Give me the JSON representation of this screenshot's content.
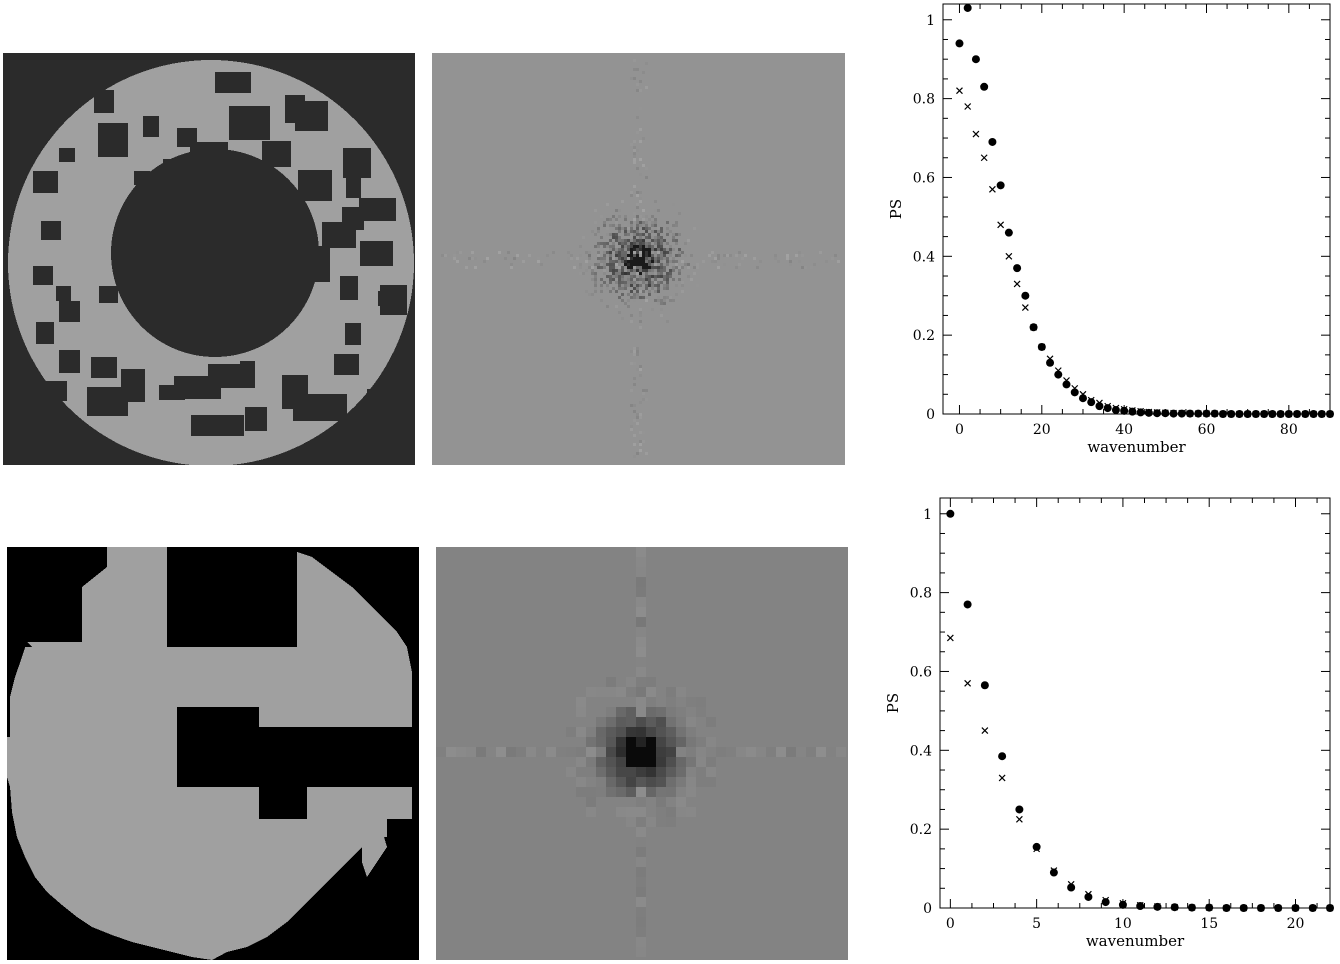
{
  "images": {
    "top_left": {
      "background": "#2b2b2b",
      "foreground": "#a0a0a0"
    },
    "top_mid": {
      "background": "#939393",
      "dark": "#1a1a1a"
    },
    "bottom_left": {
      "background": "#000000",
      "foreground": "#a0a0a0"
    },
    "bottom_mid": {
      "background": "#838383",
      "dark": "#0a0a0a"
    }
  },
  "chart_data": [
    {
      "type": "scatter",
      "xlabel": "wavenumber",
      "ylabel": "PS",
      "xlim": [
        -4,
        90
      ],
      "ylim": [
        0,
        1.04
      ],
      "xticks": [
        0,
        20,
        40,
        60,
        80
      ],
      "yticks": [
        0,
        0.2,
        0.4,
        0.6,
        0.8,
        1
      ],
      "ytick_labels": [
        "0",
        "0.2",
        "0.4",
        "0.6",
        "0.8",
        "1"
      ],
      "series": [
        {
          "marker": "circle",
          "x": [
            0,
            2,
            4,
            6,
            8,
            10,
            12,
            14,
            16,
            18,
            20,
            22,
            24,
            26,
            28,
            30,
            32,
            34,
            36,
            38,
            40,
            42,
            44,
            46,
            48,
            50,
            52,
            54,
            56,
            58,
            60,
            62,
            64,
            66,
            68,
            70,
            72,
            74,
            76,
            78,
            80,
            82,
            84,
            86,
            88,
            90
          ],
          "y": [
            0.94,
            1.03,
            0.9,
            0.83,
            0.69,
            0.58,
            0.46,
            0.37,
            0.3,
            0.22,
            0.17,
            0.13,
            0.1,
            0.075,
            0.055,
            0.04,
            0.03,
            0.02,
            0.015,
            0.01,
            0.008,
            0.006,
            0.004,
            0.003,
            0.002,
            0.002,
            0.001,
            0.001,
            0.001,
            0.001,
            0.001,
            0.001,
            0,
            0,
            0,
            0,
            0,
            0,
            0,
            0,
            0,
            0,
            0,
            0,
            0,
            0
          ]
        },
        {
          "marker": "cross",
          "x": [
            0,
            2,
            4,
            6,
            8,
            10,
            12,
            14,
            16,
            18,
            20,
            22,
            24,
            26,
            28,
            30,
            32,
            34,
            36,
            38,
            40,
            42,
            44,
            46,
            48,
            50,
            52,
            54,
            56,
            58,
            60,
            62,
            64,
            66,
            68,
            70,
            72,
            74,
            76,
            78,
            80,
            82,
            84,
            86,
            88,
            90
          ],
          "y": [
            0.82,
            0.78,
            0.71,
            0.65,
            0.57,
            0.48,
            0.4,
            0.33,
            0.27,
            0.22,
            0.17,
            0.14,
            0.11,
            0.085,
            0.065,
            0.05,
            0.035,
            0.028,
            0.02,
            0.015,
            0.012,
            0.009,
            0.007,
            0.005,
            0.004,
            0.003,
            0.002,
            0.002,
            0.001,
            0.001,
            0.001,
            0.001,
            0,
            0,
            0,
            0,
            0,
            0,
            0,
            0,
            0,
            0,
            0,
            0,
            0,
            0
          ]
        }
      ]
    },
    {
      "type": "scatter",
      "xlabel": "wavenumber",
      "ylabel": "PS",
      "xlim": [
        -0.6,
        22
      ],
      "ylim": [
        0,
        1.04
      ],
      "xticks": [
        0,
        5,
        10,
        15,
        20
      ],
      "yticks": [
        0,
        0.2,
        0.4,
        0.6,
        0.8,
        1
      ],
      "ytick_labels": [
        "0",
        "0.2",
        "0.4",
        "0.6",
        "0.8",
        "1"
      ],
      "series": [
        {
          "marker": "circle",
          "x": [
            0,
            1,
            2,
            3,
            4,
            5,
            6,
            7,
            8,
            9,
            10,
            11,
            12,
            13,
            14,
            15,
            16,
            17,
            18,
            19,
            20,
            21,
            22
          ],
          "y": [
            1.0,
            0.77,
            0.565,
            0.385,
            0.25,
            0.155,
            0.09,
            0.052,
            0.028,
            0.015,
            0.008,
            0.005,
            0.003,
            0.002,
            0.001,
            0.001,
            0,
            0,
            0,
            0,
            0,
            0,
            0
          ]
        },
        {
          "marker": "cross",
          "x": [
            0,
            1,
            2,
            3,
            4,
            5,
            6,
            7,
            8,
            9,
            10,
            11,
            12,
            13,
            14,
            15,
            16,
            17,
            18,
            19,
            20,
            21,
            22
          ],
          "y": [
            0.685,
            0.57,
            0.45,
            0.33,
            0.225,
            0.15,
            0.095,
            0.06,
            0.035,
            0.02,
            0.012,
            0.007,
            0.004,
            0.002,
            0.001,
            0.001,
            0,
            0,
            0,
            0,
            0,
            0,
            0
          ]
        }
      ]
    }
  ]
}
